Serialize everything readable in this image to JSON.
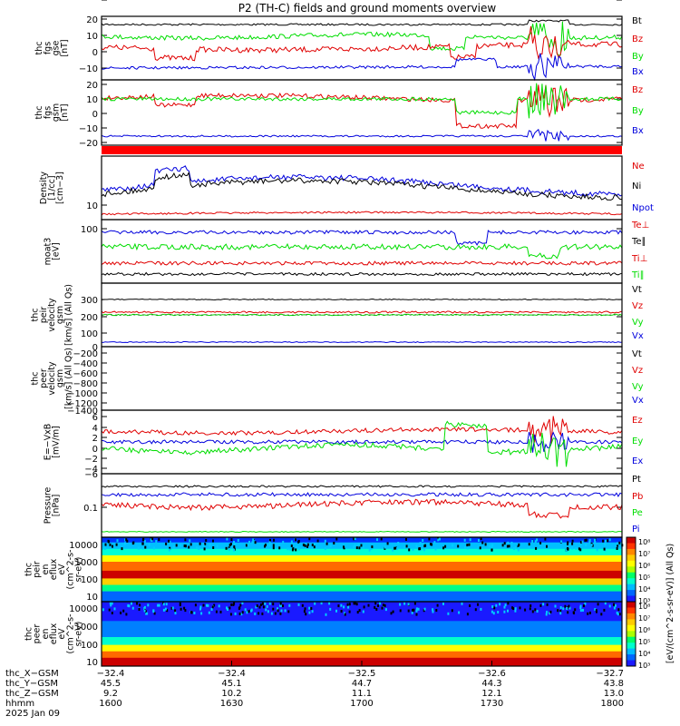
{
  "title": "P2 (TH-C) fields and ground moments overview",
  "colors": {
    "black": "#000000",
    "red": "#e00000",
    "green": "#00dd00",
    "blue": "#0000dd",
    "redbar": "#ff0000"
  },
  "panels": [
    {
      "id": "fgs-gse",
      "ylabel": [
        "thc",
        "fgs",
        "gse",
        "[nT]"
      ],
      "ticks": [
        "20",
        "10",
        "0",
        "−10"
      ],
      "legend": [
        {
          "text": "Bt",
          "color": "black"
        },
        {
          "text": "Bz",
          "color": "red"
        },
        {
          "text": "By",
          "color": "green"
        },
        {
          "text": "Bx",
          "color": "blue"
        }
      ]
    },
    {
      "id": "fgs-gsm",
      "ylabel": [
        "thc",
        "fgs",
        "gsm",
        "[nT]"
      ],
      "ticks": [
        "20",
        "10",
        "0",
        "−10",
        "−20"
      ],
      "legend": [
        {
          "text": "Bz",
          "color": "red"
        },
        {
          "text": "By",
          "color": "green"
        },
        {
          "text": "Bx",
          "color": "blue"
        }
      ]
    },
    {
      "id": "density",
      "ylabel": [
        "Density",
        "[1/cc]",
        "[cm−3]"
      ],
      "ticks": [
        "10"
      ],
      "legend": [
        {
          "text": "Ne",
          "color": "red"
        },
        {
          "text": "Ni",
          "color": "black"
        },
        {
          "text": "Npot",
          "color": "blue"
        }
      ]
    },
    {
      "id": "temperature",
      "ylabel": [
        "moat3",
        "[eV]"
      ],
      "ticks": [
        "100"
      ],
      "legend": [
        {
          "text": "Te⊥",
          "color": "red"
        },
        {
          "text": "Te∥",
          "color": "black"
        },
        {
          "text": "Ti⊥",
          "color": "red"
        },
        {
          "text": "Ti∥",
          "color": "green"
        }
      ]
    },
    {
      "id": "peir-velocity",
      "ylabel": [
        "thc",
        "peir",
        "velocity",
        "gsm",
        "[km/s] (All Qs)"
      ],
      "ticks": [
        "300",
        "200",
        "100",
        "0",
        "−100"
      ],
      "legend": [
        {
          "text": "Vt",
          "color": "black"
        },
        {
          "text": "Vz",
          "color": "red"
        },
        {
          "text": "Vy",
          "color": "green"
        },
        {
          "text": "Vx",
          "color": "blue"
        }
      ]
    },
    {
      "id": "peer-velocity",
      "ylabel": [
        "thc",
        "peer",
        "velocity",
        "gsm",
        "[km/s] (All Qs)"
      ],
      "ticks": [
        "−200",
        "−400",
        "−600",
        "−800",
        "−1000",
        "−1200",
        "−1400"
      ],
      "legend": [
        {
          "text": "Vt",
          "color": "black"
        },
        {
          "text": "Vz",
          "color": "red"
        },
        {
          "text": "Vy",
          "color": "green"
        },
        {
          "text": "Vx",
          "color": "blue"
        }
      ]
    },
    {
      "id": "e-field",
      "ylabel": [
        "E=−VxB",
        "[mV/m]"
      ],
      "ticks": [
        "6",
        "4",
        "2",
        "0",
        "−2",
        "−4",
        "−6"
      ],
      "legend": [
        {
          "text": "Ez",
          "color": "red"
        },
        {
          "text": "Ey",
          "color": "green"
        },
        {
          "text": "Ex",
          "color": "blue"
        }
      ]
    },
    {
      "id": "pressure",
      "ylabel": [
        "Pressure",
        "[nPa]"
      ],
      "ticks": [
        "0.1"
      ],
      "legend": [
        {
          "text": "Pt",
          "color": "black"
        },
        {
          "text": "Pb",
          "color": "red"
        },
        {
          "text": "Pe",
          "color": "green"
        },
        {
          "text": "Pi",
          "color": "blue"
        }
      ]
    },
    {
      "id": "peir-eflux",
      "ylabel": [
        "thc",
        "peir",
        "en",
        "eflux",
        "eV",
        "(cm^2-s-",
        "sr-eV)"
      ],
      "ticks": [
        "10000",
        "1000",
        "100",
        "10"
      ]
    },
    {
      "id": "peer-eflux",
      "ylabel": [
        "thc",
        "peer",
        "en",
        "eflux",
        "eV",
        "(cm^2-s-",
        "sr-eV)"
      ],
      "ticks": [
        "10000",
        "1000",
        "100",
        "10"
      ]
    }
  ],
  "colorbar": {
    "label": "[eV/(cm^2-s-sr-eV)] (All Qs)",
    "ticks_top": [
      "10⁸",
      "10⁷",
      "10⁶",
      "10⁵",
      "10⁴",
      "10³"
    ],
    "ticks_bottom": [
      "10⁸",
      "10⁷",
      "10⁶",
      "10⁵",
      "10⁴",
      "10³"
    ]
  },
  "xaxis": {
    "row_labels": [
      "thc_X−GSM",
      "thc_Y−GSM",
      "thc_Z−GSM",
      "hhmm",
      "2025 Jan 09"
    ],
    "columns": [
      [
        "−32.4",
        "45.5",
        "9.2",
        "1600"
      ],
      [
        "−32.4",
        "45.1",
        "10.2",
        "1630"
      ],
      [
        "−32.5",
        "44.7",
        "11.1",
        "1700"
      ],
      [
        "−32.6",
        "44.3",
        "12.1",
        "1730"
      ],
      [
        "−32.7",
        "43.8",
        "13.0",
        "1800"
      ]
    ]
  },
  "chart_data": {
    "type": "line",
    "title": "P2 (TH-C) fields and ground moments overview",
    "x_hhmm": [
      1600,
      1630,
      1700,
      1730,
      1800
    ],
    "series_levels": {
      "fgs_gse": {
        "Bt": 17,
        "Bz": 2,
        "By": 10,
        "Bx": -11
      },
      "fgs_gsm": {
        "Bz": 10,
        "By": 10,
        "Bx": -20
      },
      "peir_velocity_kms": {
        "Vt": 300,
        "Vz": 10,
        "Vy": 0,
        "Vx": -100
      },
      "efield_mVm": {
        "Ez": 2,
        "Ey": -1,
        "Ex": 0
      },
      "pressure_nPa": {
        "Pt": 0.3,
        "Pb": 0.08,
        "Pi": 0.2
      }
    },
    "spectrogram_energy_eV": [
      10,
      100,
      1000,
      10000
    ]
  }
}
